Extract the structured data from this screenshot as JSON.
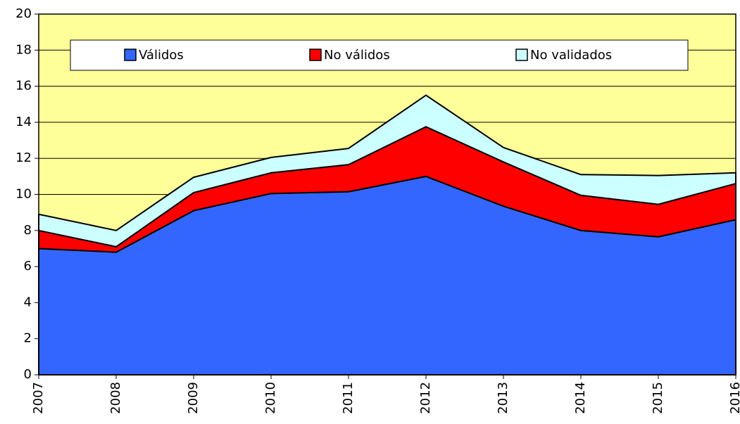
{
  "chart_data": {
    "type": "area",
    "stacked": true,
    "categories": [
      "2007",
      "2008",
      "2009",
      "2010",
      "2011",
      "2012",
      "2013",
      "2014",
      "2015",
      "2016"
    ],
    "series": [
      {
        "name": "Válidos",
        "color": "#3366ff",
        "values": [
          7.0,
          6.8,
          9.1,
          10.05,
          10.15,
          11.0,
          9.35,
          8.0,
          7.65,
          8.6
        ]
      },
      {
        "name": "No válidos",
        "color": "#ff0000",
        "values": [
          1.0,
          0.3,
          1.0,
          1.15,
          1.5,
          2.75,
          2.45,
          1.95,
          1.8,
          2.0
        ]
      },
      {
        "name": "No validados",
        "color": "#ccffff",
        "values": [
          0.9,
          0.9,
          0.85,
          0.85,
          0.9,
          1.75,
          0.8,
          1.15,
          1.6,
          0.6
        ]
      }
    ],
    "ylim": [
      0,
      20
    ],
    "yticks": [
      0,
      2,
      4,
      6,
      8,
      10,
      12,
      14,
      16,
      18,
      20
    ],
    "grid": true,
    "legend": "top",
    "background": "#ffff99"
  }
}
